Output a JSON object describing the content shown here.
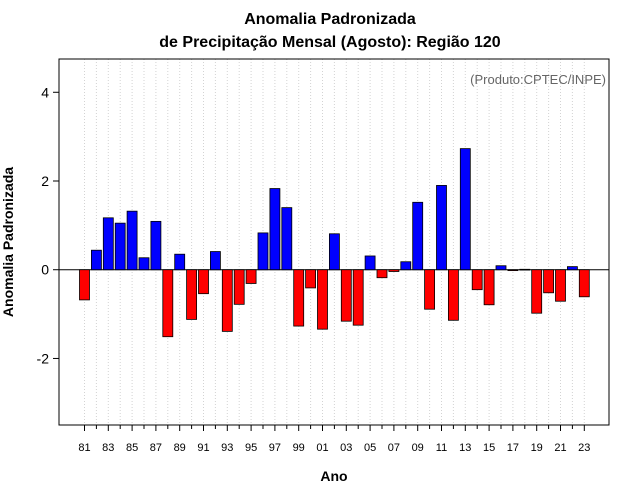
{
  "chart_data": {
    "type": "bar",
    "title": "Anomalia Padronizada",
    "subtitle": "de Precipitação Mensal (Agosto): Região 120",
    "xlabel": "Ano",
    "ylabel": "Anomalia Padronizada",
    "annotation": "(Produto:CPTEC/INPE)",
    "ylim": [
      -3.5,
      4.75
    ],
    "yticks": [
      -2,
      0,
      2,
      4
    ],
    "grid": "vertical dotted",
    "positive_color": "#0000ff",
    "negative_color": "#ff0000",
    "categories": [
      "81",
      "82",
      "83",
      "84",
      "85",
      "86",
      "87",
      "88",
      "89",
      "90",
      "91",
      "92",
      "93",
      "94",
      "95",
      "96",
      "97",
      "98",
      "99",
      "00",
      "01",
      "02",
      "03",
      "04",
      "05",
      "06",
      "07",
      "08",
      "09",
      "10",
      "11",
      "12",
      "13",
      "14",
      "15",
      "16",
      "17",
      "18",
      "19",
      "20",
      "21",
      "22",
      "23"
    ],
    "tick_labels": [
      "81",
      "83",
      "85",
      "87",
      "89",
      "91",
      "93",
      "95",
      "97",
      "99",
      "01",
      "03",
      "05",
      "07",
      "09",
      "11",
      "13",
      "15",
      "17",
      "19",
      "21",
      "23"
    ],
    "values": [
      -0.68,
      0.44,
      1.17,
      1.05,
      1.32,
      0.27,
      1.09,
      -1.51,
      0.35,
      -1.12,
      -0.54,
      0.41,
      -1.39,
      -0.78,
      -0.31,
      0.83,
      1.83,
      1.4,
      -1.27,
      -0.41,
      -1.34,
      0.81,
      -1.16,
      -1.25,
      0.31,
      -0.18,
      -0.04,
      0.18,
      1.52,
      -0.89,
      1.9,
      -1.14,
      2.73,
      -0.45,
      -0.79,
      0.09,
      -0.02,
      0.01,
      -0.98,
      -0.52,
      -0.71,
      0.07,
      -0.61
    ]
  }
}
